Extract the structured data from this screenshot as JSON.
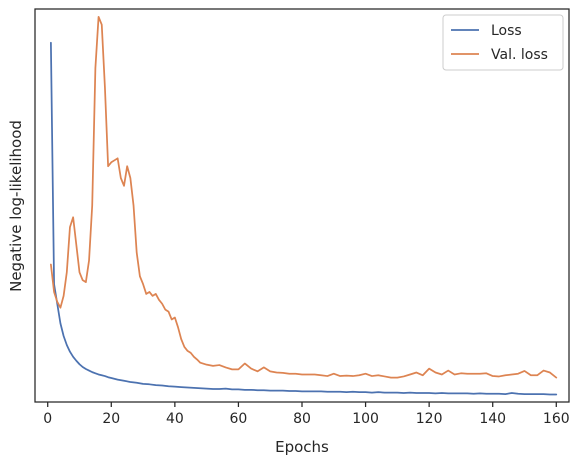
{
  "chart_data": {
    "type": "line",
    "xlabel": "Epochs",
    "ylabel": "Negative log-likelihood",
    "xlim": [
      -4,
      164
    ],
    "ylim": [
      0,
      1
    ],
    "xticks": [
      0,
      20,
      40,
      60,
      80,
      100,
      120,
      140,
      160
    ],
    "yticks": [],
    "grid": false,
    "legend": {
      "position": "top-right"
    },
    "series": [
      {
        "name": "Loss",
        "color": "#4c72b0",
        "x": [
          1,
          2,
          3,
          4,
          5,
          6,
          7,
          8,
          9,
          10,
          11,
          12,
          13,
          14,
          15,
          16,
          17,
          18,
          19,
          20,
          22,
          24,
          26,
          28,
          30,
          32,
          34,
          36,
          38,
          40,
          42,
          44,
          46,
          48,
          50,
          52,
          54,
          56,
          58,
          60,
          62,
          64,
          66,
          68,
          70,
          72,
          74,
          76,
          78,
          80,
          82,
          84,
          86,
          88,
          90,
          92,
          94,
          96,
          98,
          100,
          102,
          104,
          106,
          108,
          110,
          112,
          114,
          116,
          118,
          120,
          122,
          124,
          126,
          128,
          130,
          132,
          134,
          136,
          138,
          140,
          142,
          144,
          146,
          148,
          150,
          152,
          154,
          156,
          158,
          160
        ],
        "y": [
          0.914,
          0.3,
          0.25,
          0.2,
          0.168,
          0.145,
          0.128,
          0.115,
          0.105,
          0.096,
          0.089,
          0.084,
          0.08,
          0.076,
          0.073,
          0.07,
          0.068,
          0.066,
          0.063,
          0.061,
          0.057,
          0.054,
          0.051,
          0.049,
          0.046,
          0.045,
          0.043,
          0.042,
          0.04,
          0.039,
          0.038,
          0.037,
          0.036,
          0.035,
          0.034,
          0.033,
          0.033,
          0.034,
          0.032,
          0.032,
          0.031,
          0.031,
          0.03,
          0.03,
          0.029,
          0.029,
          0.029,
          0.028,
          0.028,
          0.027,
          0.027,
          0.027,
          0.027,
          0.026,
          0.026,
          0.026,
          0.025,
          0.026,
          0.025,
          0.025,
          0.024,
          0.025,
          0.024,
          0.024,
          0.024,
          0.023,
          0.024,
          0.023,
          0.023,
          0.023,
          0.022,
          0.023,
          0.022,
          0.022,
          0.022,
          0.022,
          0.021,
          0.022,
          0.021,
          0.021,
          0.021,
          0.02,
          0.023,
          0.021,
          0.02,
          0.02,
          0.02,
          0.02,
          0.019,
          0.019
        ]
      },
      {
        "name": "Val. loss",
        "color": "#dd8452",
        "x": [
          1,
          2,
          3,
          4,
          5,
          6,
          7,
          8,
          9,
          10,
          11,
          12,
          13,
          14,
          15,
          16,
          17,
          18,
          19,
          20,
          21,
          22,
          23,
          24,
          25,
          26,
          27,
          28,
          29,
          30,
          31,
          32,
          33,
          34,
          35,
          36,
          37,
          38,
          39,
          40,
          41,
          42,
          43,
          44,
          45,
          46,
          47,
          48,
          50,
          52,
          54,
          56,
          58,
          60,
          62,
          64,
          66,
          68,
          70,
          72,
          74,
          76,
          78,
          80,
          82,
          84,
          86,
          88,
          90,
          92,
          94,
          96,
          98,
          100,
          102,
          104,
          106,
          108,
          110,
          112,
          114,
          116,
          118,
          120,
          122,
          124,
          126,
          128,
          130,
          132,
          134,
          136,
          138,
          140,
          142,
          144,
          146,
          148,
          150,
          152,
          154,
          156,
          158,
          160
        ],
        "y": [
          0.35,
          0.28,
          0.255,
          0.24,
          0.27,
          0.33,
          0.445,
          0.47,
          0.4,
          0.33,
          0.31,
          0.305,
          0.36,
          0.5,
          0.85,
          0.98,
          0.96,
          0.8,
          0.6,
          0.61,
          0.615,
          0.62,
          0.57,
          0.55,
          0.6,
          0.57,
          0.5,
          0.38,
          0.32,
          0.3,
          0.275,
          0.28,
          0.27,
          0.275,
          0.26,
          0.25,
          0.235,
          0.23,
          0.21,
          0.215,
          0.19,
          0.16,
          0.14,
          0.13,
          0.125,
          0.115,
          0.108,
          0.1,
          0.095,
          0.092,
          0.094,
          0.088,
          0.083,
          0.083,
          0.098,
          0.085,
          0.078,
          0.088,
          0.078,
          0.075,
          0.074,
          0.072,
          0.072,
          0.07,
          0.07,
          0.07,
          0.068,
          0.066,
          0.072,
          0.066,
          0.067,
          0.066,
          0.068,
          0.072,
          0.066,
          0.068,
          0.065,
          0.062,
          0.062,
          0.065,
          0.07,
          0.075,
          0.068,
          0.085,
          0.075,
          0.07,
          0.08,
          0.07,
          0.073,
          0.072,
          0.072,
          0.072,
          0.073,
          0.066,
          0.065,
          0.068,
          0.07,
          0.072,
          0.079,
          0.068,
          0.068,
          0.08,
          0.075,
          0.062
        ]
      }
    ]
  }
}
